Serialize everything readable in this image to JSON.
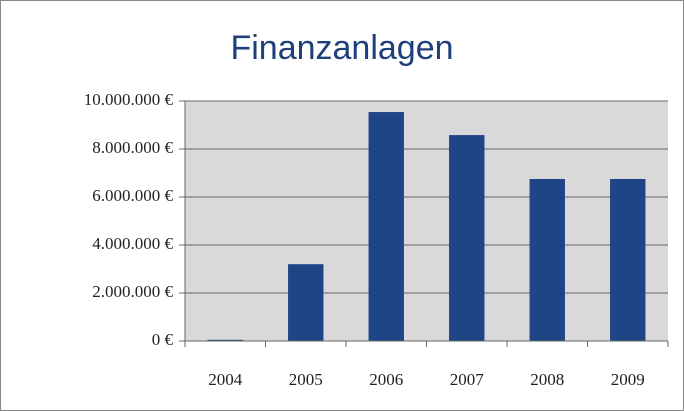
{
  "chart_data": {
    "type": "bar",
    "title": "Finanzanlagen",
    "categories": [
      "2004",
      "2005",
      "2006",
      "2007",
      "2008",
      "2009"
    ],
    "values": [
      50000,
      3200000,
      9540000,
      8580000,
      6750000,
      6750000
    ],
    "color": "#1f4587",
    "ylim": [
      0,
      10000000
    ],
    "yticks": [
      {
        "value": 0,
        "label": "0 €"
      },
      {
        "value": 2000000,
        "label": "2.000.000 €"
      },
      {
        "value": 4000000,
        "label": "4.000.000 €"
      },
      {
        "value": 6000000,
        "label": "6.000.000 €"
      },
      {
        "value": 8000000,
        "label": "8.000.000 €"
      },
      {
        "value": 10000000,
        "label": "10.000.000 €"
      }
    ],
    "grid": true
  }
}
